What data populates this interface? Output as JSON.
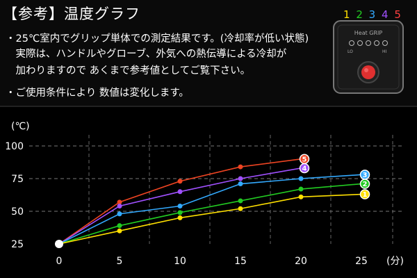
{
  "header": {
    "title": "【参考】温度グラフ",
    "notes": [
      "・25℃室内でグリップ単体での測定結果です。(冷却率が低い状態)",
      "　実際は、ハンドルやグローブ、外気への熱伝導による冷却が",
      "　加わりますので あくまで参考値としてご覧下さい。",
      "・ご使用条件により 数値は変化します。"
    ]
  },
  "device": {
    "levels": [
      "1",
      "2",
      "3",
      "4",
      "5"
    ],
    "level_colors": [
      "#ffe000",
      "#22cc22",
      "#33aaff",
      "#a050ff",
      "#ff4040"
    ],
    "label": "Heat GRIP",
    "lo": "LO",
    "hi": "HI"
  },
  "chart_data": {
    "type": "line",
    "ylabel": "(℃)",
    "xlabel": "(分)",
    "x_ticks": [
      0,
      5,
      10,
      15,
      20,
      25
    ],
    "y_ticks": [
      25,
      50,
      75,
      100
    ],
    "xlim": [
      0,
      25
    ],
    "ylim": [
      25,
      100
    ],
    "grid": true,
    "series": [
      {
        "name": "5",
        "color": "#ee4422",
        "x": [
          0,
          5,
          10,
          15,
          20
        ],
        "y": [
          25,
          57,
          73,
          84,
          90
        ]
      },
      {
        "name": "4",
        "color": "#a050ff",
        "x": [
          0,
          5,
          10,
          15,
          20
        ],
        "y": [
          25,
          54,
          65,
          75,
          83
        ]
      },
      {
        "name": "3",
        "color": "#33aaff",
        "x": [
          0,
          5,
          10,
          15,
          20,
          25
        ],
        "y": [
          25,
          48,
          54,
          71,
          75,
          78
        ]
      },
      {
        "name": "2",
        "color": "#22cc22",
        "x": [
          0,
          5,
          10,
          15,
          20,
          25
        ],
        "y": [
          25,
          39,
          49,
          58,
          67,
          71
        ]
      },
      {
        "name": "1",
        "color": "#ffe000",
        "x": [
          0,
          5,
          10,
          15,
          20,
          25
        ],
        "y": [
          25,
          35,
          45,
          52,
          61,
          63
        ]
      }
    ]
  }
}
